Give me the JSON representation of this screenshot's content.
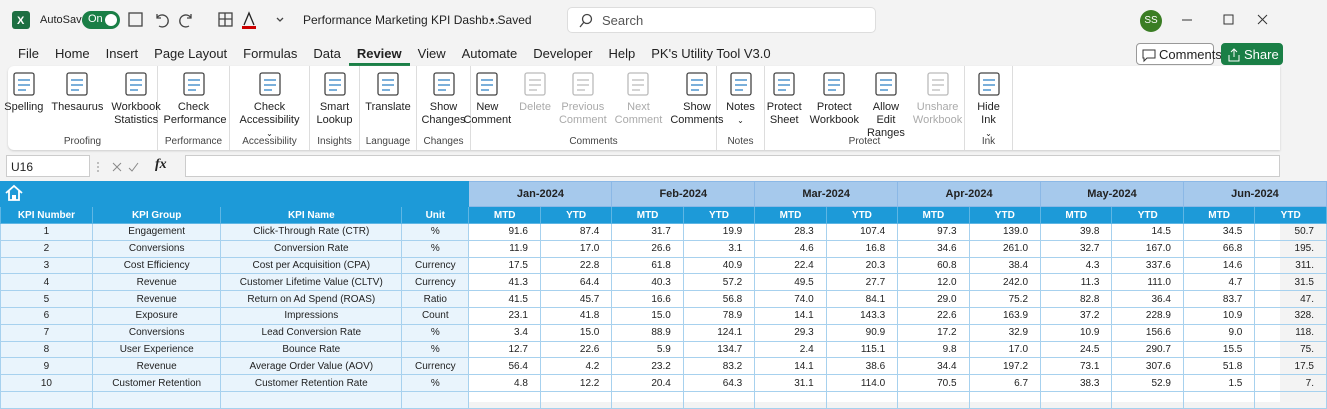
{
  "title_bar": {
    "autosave": "AutoSave",
    "toggle": "On",
    "doc_title": "Performance Marketing KPI Dashb...",
    "saved": "• Saved",
    "search": "Search",
    "avatar": "SS"
  },
  "tabs": [
    "File",
    "Home",
    "Insert",
    "Page Layout",
    "Formulas",
    "Data",
    "Review",
    "View",
    "Automate",
    "Developer",
    "Help",
    "PK's Utility Tool V3.0"
  ],
  "buttons": {
    "comments": "Comments",
    "share": "Share"
  },
  "ribbon": [
    {
      "group": "Proofing",
      "items": [
        {
          "label": "Spelling"
        },
        {
          "label": "Thesaurus"
        },
        {
          "label": "Workbook Statistics"
        }
      ]
    },
    {
      "group": "Performance",
      "items": [
        {
          "label": "Check Performance"
        }
      ]
    },
    {
      "group": "Accessibility",
      "items": [
        {
          "label": "Check Accessibility",
          "dropdown": true
        }
      ]
    },
    {
      "group": "Insights",
      "items": [
        {
          "label": "Smart Lookup"
        }
      ]
    },
    {
      "group": "Language",
      "items": [
        {
          "label": "Translate"
        }
      ]
    },
    {
      "group": "Changes",
      "items": [
        {
          "label": "Show Changes"
        }
      ]
    },
    {
      "group": "Comments",
      "items": [
        {
          "label": "New Comment"
        },
        {
          "label": "Delete",
          "disabled": true
        },
        {
          "label": "Previous Comment",
          "disabled": true
        },
        {
          "label": "Next Comment",
          "disabled": true
        },
        {
          "label": "Show Comments"
        }
      ]
    },
    {
      "group": "Notes",
      "items": [
        {
          "label": "Notes",
          "dropdown": true
        }
      ]
    },
    {
      "group": "Protect",
      "items": [
        {
          "label": "Protect Sheet"
        },
        {
          "label": "Protect Workbook"
        },
        {
          "label": "Allow Edit Ranges"
        },
        {
          "label": "Unshare Workbook",
          "disabled": true
        }
      ]
    },
    {
      "group": "Ink",
      "items": [
        {
          "label": "Hide Ink",
          "dropdown": true
        }
      ]
    }
  ],
  "formula_bar": {
    "name_box": "U16",
    "fx": "fx"
  },
  "table": {
    "months": [
      "Jan-2024",
      "Feb-2024",
      "Mar-2024",
      "Apr-2024",
      "May-2024",
      "Jun-2024"
    ],
    "sub_headers": [
      "MTD",
      "YTD"
    ],
    "headers": [
      "KPI Number",
      "KPI Group",
      "KPI Name",
      "Unit"
    ],
    "rows": [
      [
        "1",
        "Engagement",
        "Click-Through Rate (CTR)",
        "%",
        "91.6",
        "87.4",
        "31.7",
        "19.9",
        "28.3",
        "107.4",
        "97.3",
        "139.0",
        "39.8",
        "14.5",
        "34.5",
        "50.7"
      ],
      [
        "2",
        "Conversions",
        "Conversion Rate",
        "%",
        "11.9",
        "17.0",
        "26.6",
        "3.1",
        "4.6",
        "16.8",
        "34.6",
        "261.0",
        "32.7",
        "167.0",
        "66.8",
        "195."
      ],
      [
        "3",
        "Cost Efficiency",
        "Cost per Acquisition (CPA)",
        "Currency",
        "17.5",
        "22.8",
        "61.8",
        "40.9",
        "22.4",
        "20.3",
        "60.8",
        "38.4",
        "4.3",
        "337.6",
        "14.6",
        "311."
      ],
      [
        "4",
        "Revenue",
        "Customer Lifetime Value (CLTV)",
        "Currency",
        "41.3",
        "64.4",
        "40.3",
        "57.2",
        "49.5",
        "27.7",
        "12.0",
        "242.0",
        "11.3",
        "111.0",
        "4.7",
        "31.5"
      ],
      [
        "5",
        "Revenue",
        "Return on Ad Spend (ROAS)",
        "Ratio",
        "41.5",
        "45.7",
        "16.6",
        "56.8",
        "74.0",
        "84.1",
        "29.0",
        "75.2",
        "82.8",
        "36.4",
        "83.7",
        "47."
      ],
      [
        "6",
        "Exposure",
        "Impressions",
        "Count",
        "23.1",
        "41.8",
        "15.0",
        "78.9",
        "14.1",
        "143.3",
        "22.6",
        "163.9",
        "37.2",
        "228.9",
        "10.9",
        "328."
      ],
      [
        "7",
        "Conversions",
        "Lead Conversion Rate",
        "%",
        "3.4",
        "15.0",
        "88.9",
        "124.1",
        "29.3",
        "90.9",
        "17.2",
        "32.9",
        "10.9",
        "156.6",
        "9.0",
        "118."
      ],
      [
        "8",
        "User Experience",
        "Bounce Rate",
        "%",
        "12.7",
        "22.6",
        "5.9",
        "134.7",
        "2.4",
        "115.1",
        "9.8",
        "17.0",
        "24.5",
        "290.7",
        "15.5",
        "75."
      ],
      [
        "9",
        "Revenue",
        "Average Order Value (AOV)",
        "Currency",
        "56.4",
        "4.2",
        "23.2",
        "83.2",
        "14.1",
        "38.6",
        "34.4",
        "197.2",
        "73.1",
        "307.6",
        "51.8",
        "17.5"
      ],
      [
        "10",
        "Customer Retention",
        "Customer Retention Rate",
        "%",
        "4.8",
        "12.2",
        "20.4",
        "64.3",
        "31.1",
        "114.0",
        "70.5",
        "6.7",
        "38.3",
        "52.9",
        "1.5",
        "7."
      ]
    ]
  }
}
